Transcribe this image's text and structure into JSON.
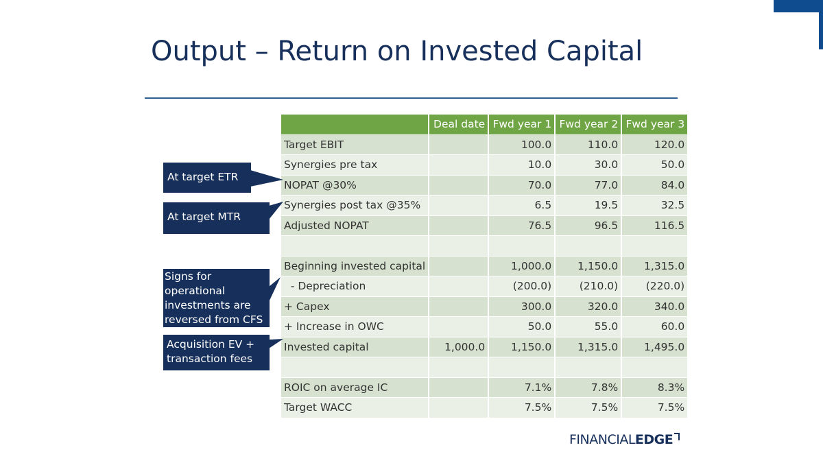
{
  "slide": {
    "title": "Output – Return on Invested Capital"
  },
  "table": {
    "headers": [
      "",
      "Deal date",
      "Fwd year 1",
      "Fwd year 2",
      "Fwd year 3"
    ],
    "rows": [
      {
        "label": "Target EBIT",
        "values": [
          "",
          "100.0",
          "110.0",
          "120.0"
        ]
      },
      {
        "label": "Synergies pre tax",
        "values": [
          "",
          "10.0",
          "30.0",
          "50.0"
        ]
      },
      {
        "label": "NOPAT @30%",
        "values": [
          "",
          "70.0",
          "77.0",
          "84.0"
        ]
      },
      {
        "label": "Synergies post tax @35%",
        "values": [
          "",
          "6.5",
          "19.5",
          "32.5"
        ]
      },
      {
        "label": "Adjusted NOPAT",
        "values": [
          "",
          "76.5",
          "96.5",
          "116.5"
        ]
      },
      {
        "label": "",
        "values": [
          "",
          "",
          "",
          ""
        ]
      },
      {
        "label": "Beginning invested capital",
        "values": [
          "",
          "1,000.0",
          "1,150.0",
          "1,315.0"
        ]
      },
      {
        "label": "  - Depreciation",
        "values": [
          "",
          "(200.0)",
          "(210.0)",
          "(220.0)"
        ]
      },
      {
        "label": "+ Capex",
        "values": [
          "",
          "300.0",
          "320.0",
          "340.0"
        ]
      },
      {
        "label": "+ Increase in OWC",
        "values": [
          "",
          "50.0",
          "55.0",
          "60.0"
        ]
      },
      {
        "label": "Invested capital",
        "values": [
          "1,000.0",
          "1,150.0",
          "1,315.0",
          "1,495.0"
        ]
      },
      {
        "label": "",
        "values": [
          "",
          "",
          "",
          ""
        ]
      },
      {
        "label": "ROIC on average IC",
        "values": [
          "",
          "7.1%",
          "7.8%",
          "8.3%"
        ]
      },
      {
        "label": "Target WACC",
        "values": [
          "",
          "7.5%",
          "7.5%",
          "7.5%"
        ]
      }
    ]
  },
  "callouts": {
    "etr": "At target ETR",
    "mtr": "At target MTR",
    "signs_lines": [
      "Signs for",
      "operational",
      "investments are",
      "reversed from CFS"
    ],
    "ev_lines": [
      "Acquisition EV +",
      "transaction fees"
    ]
  },
  "logo": {
    "financial": "FINANCIAL",
    "edge": "EDGE"
  },
  "colors": {
    "navy": "#17305b",
    "header_green": "#70a545",
    "row_dark": "#d6e2cf",
    "row_light": "#eaf0e6",
    "rule_blue": "#2d5f91"
  }
}
